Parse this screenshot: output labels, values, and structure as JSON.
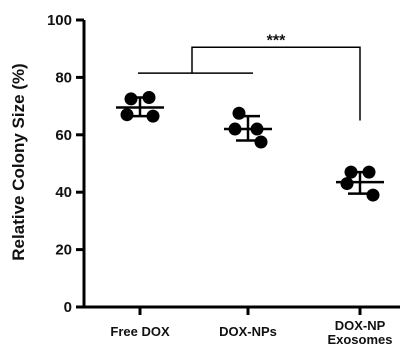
{
  "chart_data": {
    "type": "scatter",
    "ylabel": "Relative Colony Size (%)",
    "ylim": [
      0,
      100
    ],
    "yticks": [
      0,
      20,
      40,
      60,
      80,
      100
    ],
    "categories": [
      {
        "lines": [
          "Free DOX"
        ]
      },
      {
        "lines": [
          "DOX-NPs"
        ]
      },
      {
        "lines": [
          "DOX-NP",
          "Exosomes"
        ]
      }
    ],
    "groups": [
      {
        "points": [
          72.5,
          73.0,
          67.0,
          66.5
        ],
        "mean": 69.5,
        "sd_low": 66.5,
        "sd_high": 73.0
      },
      {
        "points": [
          67.5,
          62.0,
          62.0,
          57.5
        ],
        "mean": 62.0,
        "sd_low": 58.0,
        "sd_high": 66.5
      },
      {
        "points": [
          47.0,
          47.0,
          43.0,
          39.0
        ],
        "mean": 43.5,
        "sd_low": 39.5,
        "sd_high": 47.0
      }
    ],
    "significance": {
      "label": "***",
      "from": "Free DOX + DOX-NPs",
      "to": "DOX-NP Exosomes"
    },
    "grid": false,
    "legend": false,
    "colors": {
      "points": "#000000",
      "lines": "#000000"
    }
  }
}
